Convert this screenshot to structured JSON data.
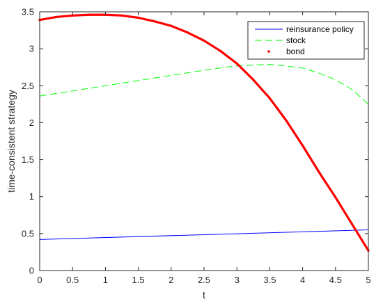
{
  "chart_data": {
    "type": "line",
    "xlabel": "t",
    "ylabel": "time-consistent strategy",
    "xlim": [
      0,
      5
    ],
    "ylim": [
      0,
      3.5
    ],
    "xticks": [
      "0",
      "0.5",
      "1",
      "1.5",
      "2",
      "2.5",
      "3",
      "3.5",
      "4",
      "4.5",
      "5"
    ],
    "yticks": [
      "0",
      "0.5",
      "1",
      "1.5",
      "2",
      "2.5",
      "3",
      "3.5"
    ],
    "grid": false,
    "legend_position": "top-right",
    "series": [
      {
        "name": "reinsurance policy",
        "style": "solid",
        "color": "#0000ff",
        "x": [
          0,
          5
        ],
        "y": [
          0.42,
          0.55
        ]
      },
      {
        "name": "stock",
        "style": "dashed",
        "color": "#00ff00",
        "x": [
          0,
          0.5,
          1,
          1.5,
          2,
          2.5,
          3,
          3.5,
          4,
          4.25,
          4.5,
          4.75,
          5
        ],
        "y": [
          2.36,
          2.43,
          2.5,
          2.57,
          2.64,
          2.71,
          2.77,
          2.79,
          2.74,
          2.67,
          2.58,
          2.45,
          2.25
        ]
      },
      {
        "name": "bond",
        "style": "dots",
        "color": "#ff0000",
        "x": [
          0,
          0.25,
          0.5,
          0.75,
          1,
          1.25,
          1.5,
          1.75,
          2,
          2.25,
          2.5,
          2.75,
          3,
          3.25,
          3.5,
          3.75,
          4,
          4.25,
          4.5,
          4.75,
          5
        ],
        "y": [
          3.39,
          3.43,
          3.45,
          3.46,
          3.46,
          3.45,
          3.42,
          3.37,
          3.31,
          3.22,
          3.11,
          2.97,
          2.8,
          2.58,
          2.33,
          2.03,
          1.69,
          1.33,
          0.99,
          0.63,
          0.27
        ]
      }
    ]
  }
}
